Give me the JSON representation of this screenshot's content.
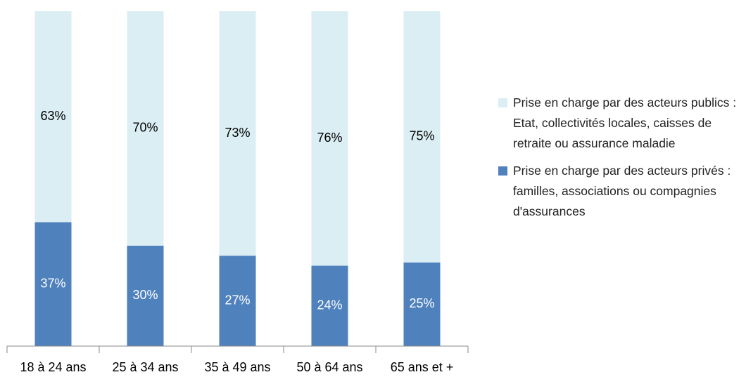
{
  "chart_data": {
    "type": "stacked_bar",
    "categories": [
      "18 à 24 ans",
      "25 à 34 ans",
      "35 à 49 ans",
      "50 à 64 ans",
      "65 ans et +"
    ],
    "series": [
      {
        "name": "Prise en charge par des acteurs privés : familles, associations ou compagnies d'assurances",
        "color": "#4f81bd",
        "label_color": "#ffffff",
        "values": [
          37,
          30,
          27,
          24,
          25
        ],
        "value_labels": [
          "37%",
          "30%",
          "27%",
          "24%",
          "25%"
        ]
      },
      {
        "name": "Prise en charge par des acteurs publics : Etat, collectivités locales, caisses de retraite ou assurance maladie",
        "color": "#dbeef4",
        "label_color": "#000000",
        "values": [
          63,
          70,
          73,
          76,
          75
        ],
        "value_labels": [
          "63%",
          "70%",
          "73%",
          "76%",
          "75%"
        ]
      }
    ],
    "ylim": [
      0,
      100
    ],
    "legend": "right"
  }
}
